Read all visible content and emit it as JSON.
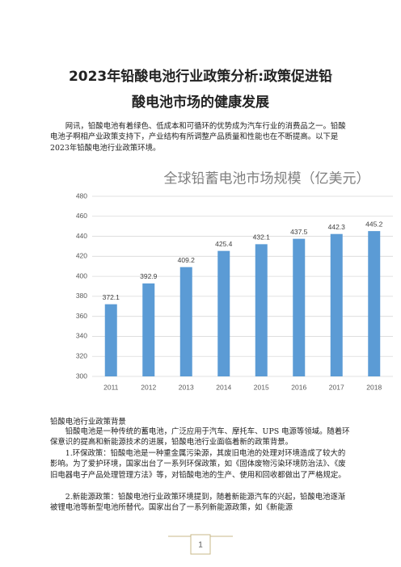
{
  "title_lines": [
    "2023年铅酸电池行业政策分析:政策促进铅",
    "酸电池市场的健康发展"
  ],
  "intro": "网讯，铅酸电池有着绿色、低成本和可循环的优势成为汽车行业的消费品之一。铅酸电池子啊相产业政策支持下，产业结构有所调整产品质量和性能也在不断提高。以下是2023年铅酸电池行业政策环境。",
  "chart_data": {
    "type": "bar",
    "title": "全球铅蓄电池市场规模（亿美元）",
    "categories": [
      "2011",
      "2012",
      "2013",
      "2014",
      "2015",
      "2016",
      "2017",
      "2018"
    ],
    "values": [
      372.1,
      392.9,
      409.2,
      425.4,
      432.1,
      437.5,
      442.3,
      445.2
    ],
    "color": "#5b9bd5",
    "ylim": [
      300,
      480
    ],
    "yticks": [
      300,
      320,
      340,
      360,
      380,
      400,
      420,
      440,
      460,
      480
    ],
    "grid": true
  },
  "section": {
    "heading": "铅酸电池行业政策背景",
    "paragraphs": [
      "铅酸电池是一种传统的蓄电池，广泛应用于汽车、摩托车、UPS 电源等领域。随着环保意识的提高和新能源技术的进展，铅酸电池行业面临着新的政策背景。",
      "1.环保政策：铅酸电池是一种重金属污染源，其废旧电池的处理对环境造成了较大的影响。为了爱护环境，国家出台了一系列环保政策，如《固体废物污染环境防治法》、《废旧电器电子产品处理管理方法》等，对铅酸电池的生产、使用和回收都做出了严格规定。",
      "2.新能源政策：铅酸电池行业政策环境提到，随着新能源汽车的兴起，铅酸电池逐渐被锂电池等新型电池所替代。国家出台了一系列新能源政策，如《新能源"
    ]
  },
  "page_number": "1"
}
